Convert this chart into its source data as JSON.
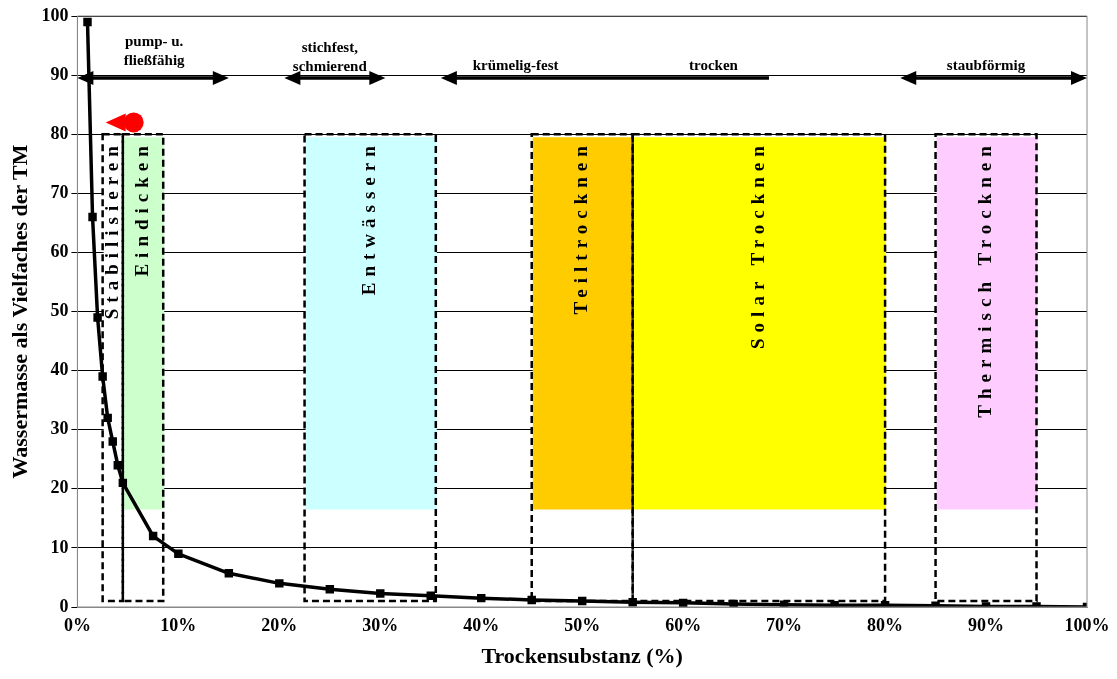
{
  "chart_data": {
    "type": "line",
    "xlabel": "Trockensubstanz (%)",
    "ylabel": "Wassermasse als Vielfaches der TM",
    "x": [
      1,
      1.5,
      2,
      2.5,
      3,
      3.5,
      4,
      4.5,
      7.5,
      10,
      15,
      20,
      25,
      30,
      35,
      40,
      45,
      50,
      55,
      60,
      65,
      70,
      75,
      80,
      85,
      90,
      95,
      100
    ],
    "values": [
      99,
      66,
      49,
      39,
      32,
      28,
      24,
      21,
      12,
      9,
      5.7,
      4,
      3,
      2.3,
      1.9,
      1.5,
      1.2,
      1,
      0.8,
      0.7,
      0.5,
      0.4,
      0.3,
      0.3,
      0.2,
      0.1,
      0.1,
      0
    ],
    "color": "#000000",
    "marker": "square",
    "line_style": "solid",
    "legend": false,
    "grid": "y",
    "xlim": [
      0,
      100
    ],
    "ylim": [
      0,
      100
    ],
    "xticks": [
      {
        "value": 0,
        "label": "0%"
      },
      {
        "value": 10,
        "label": "10%"
      },
      {
        "value": 20,
        "label": "20%"
      },
      {
        "value": 30,
        "label": "30%"
      },
      {
        "value": 40,
        "label": "40%"
      },
      {
        "value": 50,
        "label": "50%"
      },
      {
        "value": 60,
        "label": "60%"
      },
      {
        "value": 70,
        "label": "70%"
      },
      {
        "value": 80,
        "label": "80%"
      },
      {
        "value": 90,
        "label": "90%"
      },
      {
        "value": 100,
        "label": "100%"
      }
    ],
    "yticks": [
      0,
      10,
      20,
      30,
      40,
      50,
      60,
      70,
      80,
      90,
      100
    ],
    "bands": [
      {
        "axis": "x",
        "from": 2.5,
        "to": 4.5,
        "label": "Stabilisieren",
        "color": "#ffffff"
      },
      {
        "axis": "x",
        "from": 4.5,
        "to": 8.5,
        "label": "Eindicken",
        "color": "#ccffcc"
      },
      {
        "axis": "x",
        "from": 22.5,
        "to": 35.5,
        "label": "Entwässern",
        "color": "#ccffff"
      },
      {
        "axis": "x",
        "from": 45,
        "to": 55,
        "label": "Teiltrocknen",
        "color": "#ffcc00"
      },
      {
        "axis": "x",
        "from": 55,
        "to": 80,
        "label": "Solar Trocknen",
        "color": "#ffff00"
      },
      {
        "axis": "x",
        "from": 85,
        "to": 95,
        "label": "Thermisch Trocknen",
        "color": "#ffccff"
      }
    ],
    "annotations": [
      "pump- u.\nfließfähig",
      "stichfest,\nschmierend",
      "krümelig-fest",
      "trocken",
      "staubförmig"
    ]
  }
}
